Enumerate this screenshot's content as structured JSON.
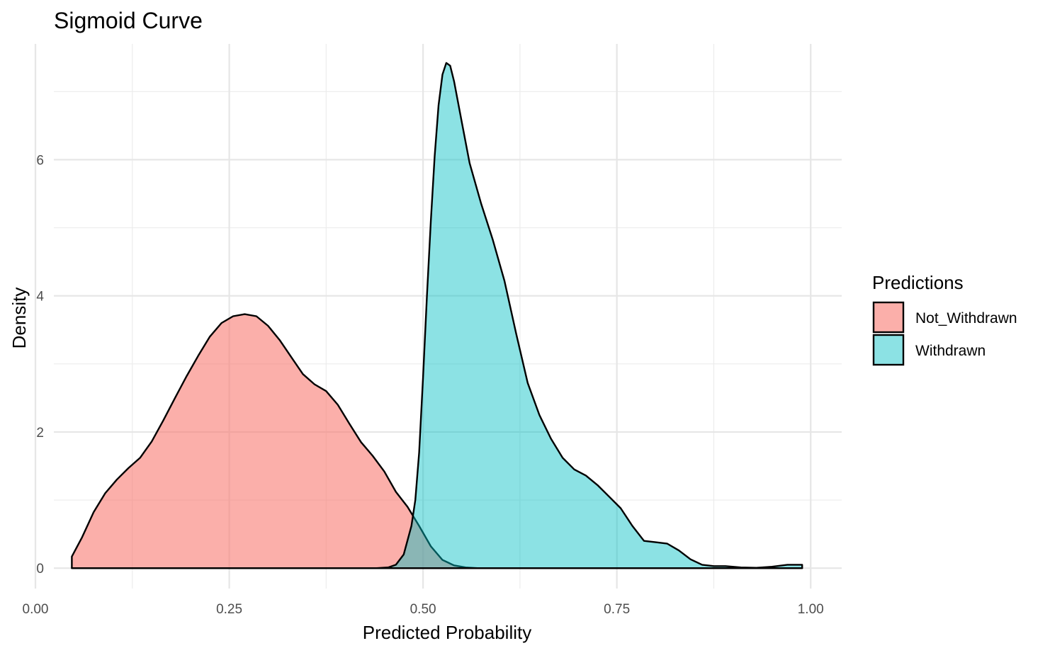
{
  "chart_data": {
    "type": "area",
    "title": "Sigmoid Curve",
    "xlabel": "Predicted Probability",
    "ylabel": "Density",
    "xlim": [
      0,
      1.04
    ],
    "ylim": [
      -0.3,
      7.7
    ],
    "x_ticks": [
      0,
      0.25,
      0.5,
      0.75,
      1.0
    ],
    "x_tick_labels": [
      "0.00",
      "0.25",
      "0.50",
      "0.75",
      "1.00"
    ],
    "y_ticks": [
      0,
      2,
      4,
      6
    ],
    "y_tick_labels": [
      "0",
      "2",
      "4",
      "6"
    ],
    "grid": true,
    "legend": {
      "title": "Predictions",
      "position": "right"
    },
    "series": [
      {
        "name": "Not_Withdrawn",
        "color": "#F8766D",
        "opacity": 0.58,
        "points": [
          [
            0.047,
            0.17
          ],
          [
            0.06,
            0.45
          ],
          [
            0.075,
            0.82
          ],
          [
            0.09,
            1.1
          ],
          [
            0.105,
            1.3
          ],
          [
            0.12,
            1.47
          ],
          [
            0.135,
            1.62
          ],
          [
            0.15,
            1.86
          ],
          [
            0.165,
            2.17
          ],
          [
            0.18,
            2.5
          ],
          [
            0.195,
            2.82
          ],
          [
            0.21,
            3.12
          ],
          [
            0.225,
            3.4
          ],
          [
            0.24,
            3.6
          ],
          [
            0.255,
            3.7
          ],
          [
            0.27,
            3.73
          ],
          [
            0.285,
            3.7
          ],
          [
            0.3,
            3.56
          ],
          [
            0.315,
            3.35
          ],
          [
            0.33,
            3.1
          ],
          [
            0.345,
            2.85
          ],
          [
            0.36,
            2.7
          ],
          [
            0.375,
            2.6
          ],
          [
            0.39,
            2.4
          ],
          [
            0.405,
            2.12
          ],
          [
            0.42,
            1.85
          ],
          [
            0.435,
            1.65
          ],
          [
            0.45,
            1.42
          ],
          [
            0.465,
            1.12
          ],
          [
            0.48,
            0.9
          ],
          [
            0.495,
            0.62
          ],
          [
            0.51,
            0.32
          ],
          [
            0.525,
            0.12
          ],
          [
            0.54,
            0.04
          ],
          [
            0.555,
            0.01
          ],
          [
            0.57,
            0.0
          ],
          [
            0.6,
            0.0
          ],
          [
            0.65,
            0.0
          ],
          [
            0.7,
            0.0
          ],
          [
            0.75,
            0.0
          ],
          [
            0.8,
            0.0
          ],
          [
            0.85,
            0.0
          ],
          [
            0.9,
            0.0
          ],
          [
            0.95,
            0.0
          ],
          [
            0.989,
            0.0
          ]
        ]
      },
      {
        "name": "Withdrawn",
        "color": "#00BFC4",
        "opacity": 0.45,
        "points": [
          [
            0.047,
            0.0
          ],
          [
            0.1,
            0.0
          ],
          [
            0.2,
            0.0
          ],
          [
            0.3,
            0.0
          ],
          [
            0.4,
            0.0
          ],
          [
            0.44,
            0.0
          ],
          [
            0.455,
            0.01
          ],
          [
            0.465,
            0.05
          ],
          [
            0.475,
            0.2
          ],
          [
            0.485,
            0.62
          ],
          [
            0.49,
            1.0
          ],
          [
            0.495,
            1.7
          ],
          [
            0.5,
            2.8
          ],
          [
            0.505,
            4.0
          ],
          [
            0.51,
            5.1
          ],
          [
            0.515,
            6.05
          ],
          [
            0.52,
            6.8
          ],
          [
            0.525,
            7.25
          ],
          [
            0.53,
            7.42
          ],
          [
            0.535,
            7.38
          ],
          [
            0.54,
            7.15
          ],
          [
            0.55,
            6.55
          ],
          [
            0.56,
            5.95
          ],
          [
            0.575,
            5.35
          ],
          [
            0.59,
            4.82
          ],
          [
            0.605,
            4.22
          ],
          [
            0.62,
            3.45
          ],
          [
            0.635,
            2.72
          ],
          [
            0.65,
            2.25
          ],
          [
            0.665,
            1.9
          ],
          [
            0.68,
            1.62
          ],
          [
            0.695,
            1.45
          ],
          [
            0.71,
            1.36
          ],
          [
            0.725,
            1.22
          ],
          [
            0.74,
            1.05
          ],
          [
            0.755,
            0.88
          ],
          [
            0.77,
            0.62
          ],
          [
            0.785,
            0.4
          ],
          [
            0.8,
            0.38
          ],
          [
            0.815,
            0.36
          ],
          [
            0.83,
            0.26
          ],
          [
            0.845,
            0.13
          ],
          [
            0.86,
            0.05
          ],
          [
            0.875,
            0.03
          ],
          [
            0.89,
            0.03
          ],
          [
            0.91,
            0.01
          ],
          [
            0.93,
            0.005
          ],
          [
            0.95,
            0.02
          ],
          [
            0.97,
            0.05
          ],
          [
            0.989,
            0.05
          ]
        ]
      }
    ]
  }
}
